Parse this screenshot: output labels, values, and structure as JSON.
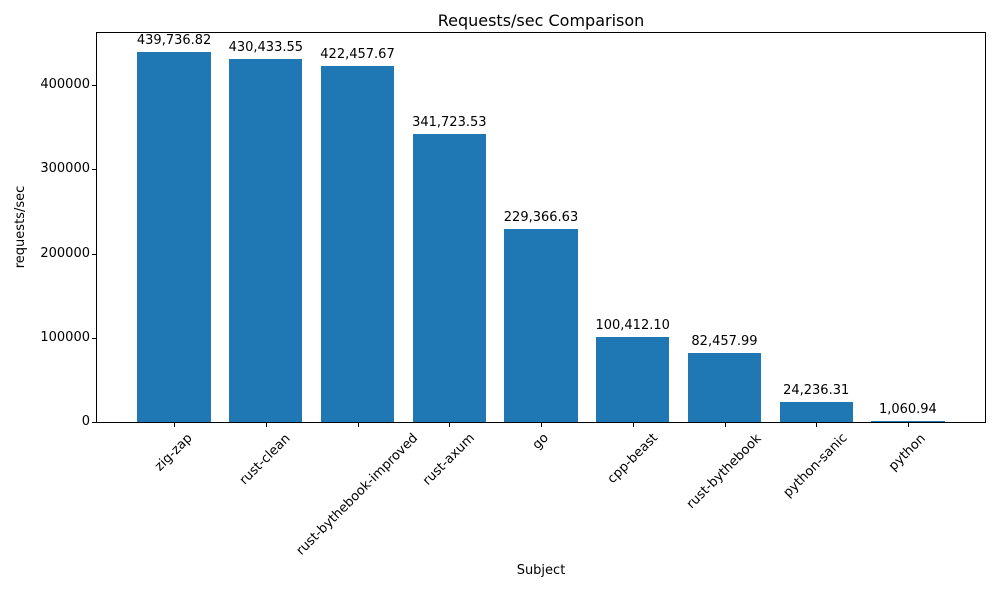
{
  "chart_data": {
    "type": "bar",
    "title": "Requests/sec Comparison",
    "xlabel": "Subject",
    "ylabel": "requests/sec",
    "categories": [
      "zig-zap",
      "rust-clean",
      "rust-bythebook-improved",
      "rust-axum",
      "go",
      "cpp-beast",
      "rust-bythebook",
      "python-sanic",
      "python"
    ],
    "values": [
      439736.82,
      430433.55,
      422457.67,
      341723.53,
      229366.63,
      100412.1,
      82457.99,
      24236.31,
      1060.94
    ],
    "value_labels": [
      "439,736.82",
      "430,433.55",
      "422,457.67",
      "341,723.53",
      "229,366.63",
      "100,412.10",
      "82,457.99",
      "24,236.31",
      "1,060.94"
    ],
    "yticks": [
      0,
      100000,
      200000,
      300000,
      400000
    ],
    "ytick_labels": [
      "0",
      "100000",
      "200000",
      "300000",
      "400000"
    ],
    "ylim": [
      0,
      461723.66
    ],
    "bar_color": "#1f77b4",
    "grid": false,
    "legend": "none"
  }
}
